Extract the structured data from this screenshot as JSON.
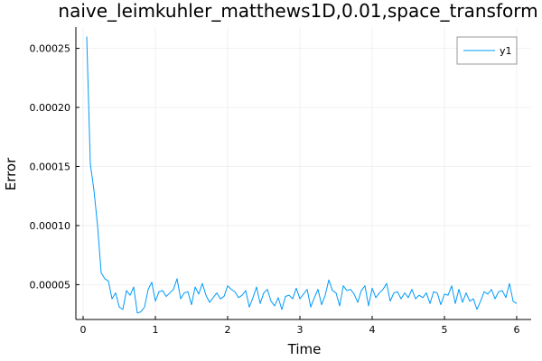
{
  "chart_data": {
    "type": "line",
    "title": "naive_leimkuhler_matthews1D,0.01,space_transform",
    "xlabel": "Time",
    "ylabel": "Error",
    "xlim": [
      -0.1,
      6.2
    ],
    "ylim": [
      2.05e-05,
      0.000268
    ],
    "x_ticks": [
      0,
      1,
      2,
      3,
      4,
      5,
      6
    ],
    "x_tick_labels": [
      "0",
      "1",
      "2",
      "3",
      "4",
      "5",
      "6"
    ],
    "y_ticks": [
      5e-05,
      0.0001,
      0.00015,
      0.0002,
      0.00025
    ],
    "y_tick_labels": [
      "0.00005",
      "0.00010",
      "0.00015",
      "0.00020",
      "0.00025"
    ],
    "grid": true,
    "legend_position": "top-right",
    "series": [
      {
        "name": "y1",
        "color": "#009af9",
        "x": [
          0.05,
          0.1,
          0.15,
          0.2,
          0.25,
          0.3,
          0.35,
          0.4,
          0.45,
          0.5,
          0.55,
          0.6,
          0.65,
          0.7,
          0.75,
          0.8,
          0.85,
          0.9,
          0.95,
          1.0,
          1.05,
          1.1,
          1.15,
          1.2,
          1.25,
          1.3,
          1.35,
          1.4,
          1.45,
          1.5,
          1.55,
          1.6,
          1.65,
          1.7,
          1.75,
          1.8,
          1.85,
          1.9,
          1.95,
          2.0,
          2.05,
          2.1,
          2.15,
          2.2,
          2.25,
          2.3,
          2.35,
          2.4,
          2.45,
          2.5,
          2.55,
          2.6,
          2.65,
          2.7,
          2.75,
          2.8,
          2.85,
          2.9,
          2.95,
          3.0,
          3.05,
          3.1,
          3.15,
          3.2,
          3.25,
          3.3,
          3.35,
          3.4,
          3.45,
          3.5,
          3.55,
          3.6,
          3.65,
          3.7,
          3.75,
          3.8,
          3.85,
          3.9,
          3.95,
          4.0,
          4.05,
          4.1,
          4.15,
          4.2,
          4.25,
          4.3,
          4.35,
          4.4,
          4.45,
          4.5,
          4.55,
          4.6,
          4.65,
          4.7,
          4.75,
          4.8,
          4.85,
          4.9,
          4.95,
          5.0,
          5.05,
          5.1,
          5.15,
          5.2,
          5.25,
          5.3,
          5.35,
          5.4,
          5.45,
          5.5,
          5.55,
          5.6,
          5.65,
          5.7,
          5.75,
          5.8,
          5.85,
          5.9,
          5.95,
          6.0
        ],
        "y": [
          0.00026,
          0.000152,
          0.00013,
          0.0001,
          6e-05,
          5.5e-05,
          5.3e-05,
          3.8e-05,
          4.3e-05,
          3.1e-05,
          2.9e-05,
          4.5e-05,
          4.1e-05,
          4.8e-05,
          2.6e-05,
          2.7e-05,
          3.1e-05,
          4.6e-05,
          5.2e-05,
          3.6e-05,
          4.4e-05,
          4.5e-05,
          4e-05,
          4.3e-05,
          4.6e-05,
          5.5e-05,
          3.8e-05,
          4.3e-05,
          4.4e-05,
          3.3e-05,
          4.8e-05,
          4.2e-05,
          5.1e-05,
          4.1e-05,
          3.5e-05,
          3.9e-05,
          4.3e-05,
          3.8e-05,
          4e-05,
          4.9e-05,
          4.6e-05,
          4.4e-05,
          3.9e-05,
          4.1e-05,
          4.5e-05,
          3.1e-05,
          3.9e-05,
          4.8e-05,
          3.4e-05,
          4.3e-05,
          4.6e-05,
          3.6e-05,
          3.2e-05,
          3.9e-05,
          2.9e-05,
          4e-05,
          4.1e-05,
          3.8e-05,
          4.7e-05,
          3.8e-05,
          4.2e-05,
          4.6e-05,
          3.1e-05,
          3.9e-05,
          4.6e-05,
          3.3e-05,
          4.1e-05,
          5.4e-05,
          4.5e-05,
          4.3e-05,
          3.2e-05,
          4.9e-05,
          4.5e-05,
          4.6e-05,
          4.2e-05,
          3.5e-05,
          4.5e-05,
          4.9e-05,
          3.2e-05,
          4.7e-05,
          3.9e-05,
          4.3e-05,
          4.6e-05,
          5.1e-05,
          3.6e-05,
          4.3e-05,
          4.4e-05,
          3.8e-05,
          4.3e-05,
          3.9e-05,
          4.6e-05,
          3.8e-05,
          4.1e-05,
          3.9e-05,
          4.3e-05,
          3.4e-05,
          4.4e-05,
          4.3e-05,
          3.3e-05,
          4.2e-05,
          4.1e-05,
          4.9e-05,
          3.4e-05,
          4.6e-05,
          3.5e-05,
          4.3e-05,
          3.6e-05,
          3.8e-05,
          2.9e-05,
          3.6e-05,
          4.4e-05,
          4.2e-05,
          4.6e-05,
          3.8e-05,
          4.4e-05,
          4.5e-05,
          3.9e-05,
          5.1e-05,
          3.6e-05,
          3.4e-05
        ]
      }
    ]
  }
}
